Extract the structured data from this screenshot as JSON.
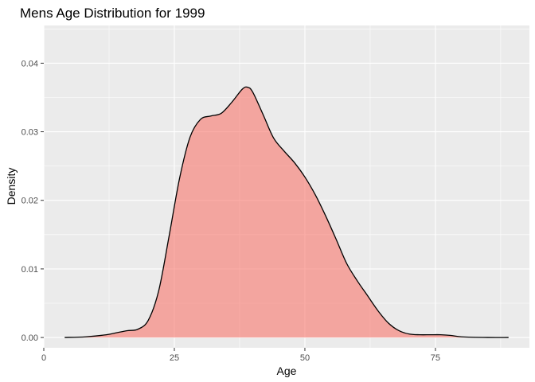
{
  "chart_data": {
    "type": "area",
    "title": "Mens Age Distribution for 1999",
    "xlabel": "Age",
    "ylabel": "Density",
    "xlim": [
      0,
      93
    ],
    "ylim": [
      -0.0015,
      0.0455
    ],
    "x_ticks": [
      0,
      25,
      50,
      75
    ],
    "x_tick_labels": [
      "0",
      "25",
      "50",
      "75"
    ],
    "y_ticks": [
      0.0,
      0.01,
      0.02,
      0.03,
      0.04
    ],
    "y_tick_labels": [
      "0.00",
      "0.01",
      "0.02",
      "0.03",
      "0.04"
    ],
    "grid": true,
    "legend": "none",
    "colors": {
      "fill": "#F8766D",
      "line": "#000000",
      "panel": "#EBEBEB",
      "grid": "#FFFFFF"
    },
    "series": [
      {
        "x": [
          4,
          8,
          12,
          14,
          16,
          18,
          20,
          22,
          24,
          26,
          28,
          30,
          32,
          34,
          36,
          38,
          39,
          40,
          42,
          44,
          46,
          48,
          50,
          52,
          54,
          56,
          58,
          60,
          62,
          64,
          66,
          68,
          70,
          72,
          74,
          76,
          78,
          80,
          85,
          89
        ],
        "y": [
          0.0,
          0.0001,
          0.0004,
          0.0007,
          0.001,
          0.0012,
          0.0025,
          0.0068,
          0.0148,
          0.0232,
          0.0292,
          0.0318,
          0.0323,
          0.0327,
          0.0343,
          0.0362,
          0.0365,
          0.0358,
          0.0325,
          0.0291,
          0.0272,
          0.0255,
          0.0234,
          0.0208,
          0.0177,
          0.0143,
          0.0108,
          0.0083,
          0.0061,
          0.0039,
          0.0021,
          0.001,
          0.0005,
          0.0004,
          0.0004,
          0.0004,
          0.0003,
          0.0001,
          0.0,
          0.0
        ]
      }
    ]
  }
}
